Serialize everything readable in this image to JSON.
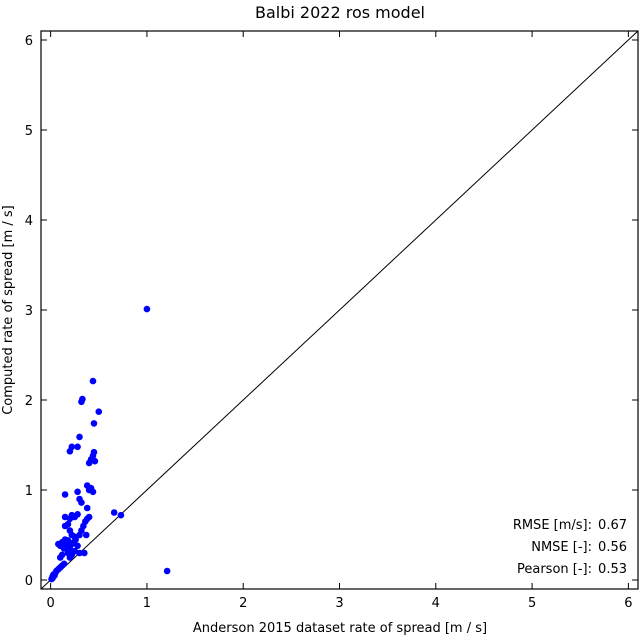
{
  "chart_data": {
    "type": "scatter",
    "title": "Balbi 2022 ros model",
    "xlabel": "Anderson 2015 dataset rate of spread [m / s]",
    "ylabel": "Computed rate of spread [m / s]",
    "xlim": [
      -0.1,
      6.1
    ],
    "ylim": [
      -0.1,
      6.1
    ],
    "xticks": [
      "0",
      "1",
      "2",
      "3",
      "4",
      "5",
      "6"
    ],
    "yticks": [
      "0",
      "1",
      "2",
      "3",
      "4",
      "5",
      "6"
    ],
    "reference_line": "y = x",
    "point_color": "#0000ff",
    "stats": [
      {
        "label": "RMSE [m/s]:",
        "value": "0.67"
      },
      {
        "label": "NMSE [-]:",
        "value": "0.56"
      },
      {
        "label": "Pearson [-]:",
        "value": "0.53"
      }
    ],
    "points": [
      [
        0.01,
        0.01
      ],
      [
        0.02,
        0.02
      ],
      [
        0.02,
        0.04
      ],
      [
        0.03,
        0.06
      ],
      [
        0.04,
        0.05
      ],
      [
        0.05,
        0.08
      ],
      [
        0.06,
        0.1
      ],
      [
        0.08,
        0.12
      ],
      [
        0.1,
        0.14
      ],
      [
        0.12,
        0.16
      ],
      [
        0.14,
        0.18
      ],
      [
        0.08,
        0.4
      ],
      [
        0.1,
        0.38
      ],
      [
        0.12,
        0.42
      ],
      [
        0.15,
        0.45
      ],
      [
        0.1,
        0.25
      ],
      [
        0.12,
        0.28
      ],
      [
        0.14,
        0.35
      ],
      [
        0.16,
        0.4
      ],
      [
        0.18,
        0.44
      ],
      [
        0.15,
        0.6
      ],
      [
        0.18,
        0.62
      ],
      [
        0.2,
        0.55
      ],
      [
        0.22,
        0.5
      ],
      [
        0.25,
        0.48
      ],
      [
        0.15,
        0.7
      ],
      [
        0.2,
        0.68
      ],
      [
        0.22,
        0.72
      ],
      [
        0.25,
        0.7
      ],
      [
        0.28,
        0.73
      ],
      [
        0.18,
        0.3
      ],
      [
        0.2,
        0.35
      ],
      [
        0.22,
        0.4
      ],
      [
        0.24,
        0.42
      ],
      [
        0.26,
        0.45
      ],
      [
        0.2,
        0.25
      ],
      [
        0.22,
        0.28
      ],
      [
        0.25,
        0.32
      ],
      [
        0.28,
        0.38
      ],
      [
        0.3,
        0.5
      ],
      [
        0.32,
        0.55
      ],
      [
        0.34,
        0.6
      ],
      [
        0.36,
        0.65
      ],
      [
        0.38,
        0.68
      ],
      [
        0.3,
        0.3
      ],
      [
        0.35,
        0.3
      ],
      [
        0.37,
        0.5
      ],
      [
        0.4,
        0.7
      ],
      [
        0.38,
        0.8
      ],
      [
        0.15,
        0.95
      ],
      [
        0.28,
        0.98
      ],
      [
        0.3,
        0.9
      ],
      [
        0.32,
        0.86
      ],
      [
        0.4,
        1.0
      ],
      [
        0.42,
        1.02
      ],
      [
        0.44,
        0.98
      ],
      [
        0.38,
        1.05
      ],
      [
        0.4,
        1.3
      ],
      [
        0.42,
        1.34
      ],
      [
        0.44,
        1.38
      ],
      [
        0.45,
        1.42
      ],
      [
        0.46,
        1.32
      ],
      [
        0.2,
        1.43
      ],
      [
        0.22,
        1.48
      ],
      [
        0.28,
        1.48
      ],
      [
        0.3,
        1.59
      ],
      [
        0.45,
        1.74
      ],
      [
        0.5,
        1.87
      ],
      [
        0.32,
        1.98
      ],
      [
        0.33,
        2.01
      ],
      [
        0.44,
        2.21
      ],
      [
        0.66,
        0.75
      ],
      [
        0.73,
        0.72
      ],
      [
        1.0,
        3.01
      ],
      [
        1.21,
        0.1
      ]
    ]
  }
}
